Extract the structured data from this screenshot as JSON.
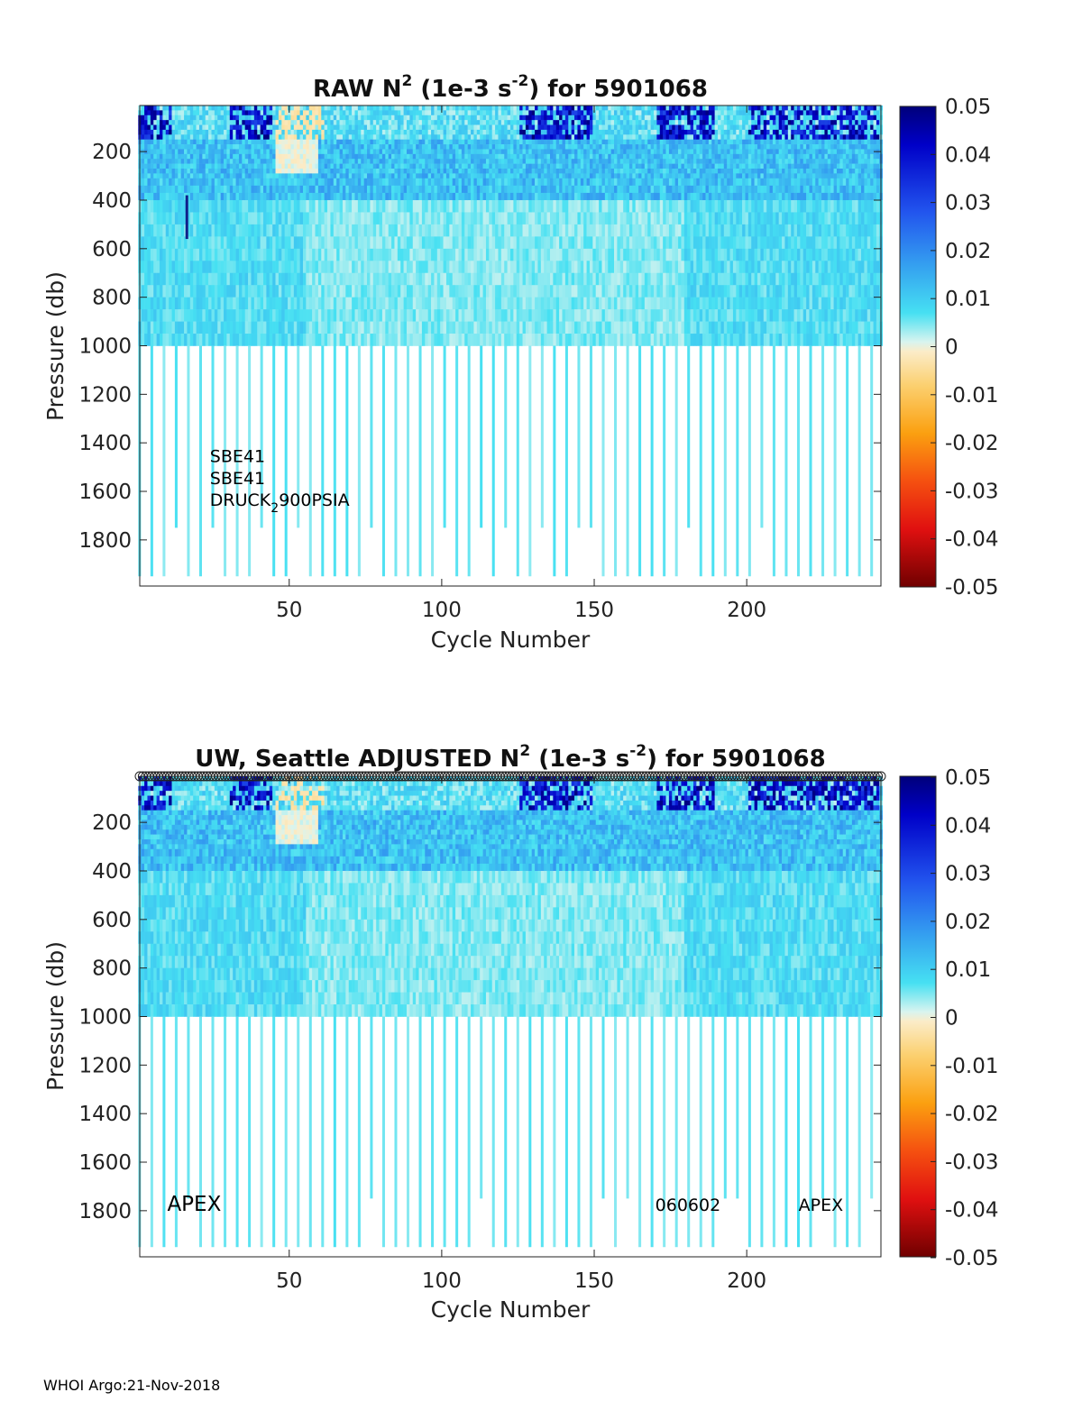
{
  "chart_data": [
    {
      "type": "heatmap",
      "title": "RAW N",
      "title_sup": "2",
      "title_units_pre": " (1e-3 s",
      "title_units_sup": "-2",
      "title_suffix": ") for 5901068",
      "xlabel": "Cycle Number",
      "ylabel": "Pressure (db)",
      "xlim": [
        1,
        244
      ],
      "ylim": [
        1990,
        10
      ],
      "xticks": [
        50,
        100,
        150,
        200
      ],
      "yticks": [
        200,
        400,
        600,
        800,
        1000,
        1200,
        1400,
        1600,
        1800
      ],
      "colorbar": {
        "range": [
          -0.05,
          0.05
        ],
        "ticks": [
          "0.05",
          "0.04",
          "0.03",
          "0.02",
          "0.01",
          "0",
          "-0.01",
          "-0.02",
          "-0.03",
          "-0.04",
          "-0.05"
        ],
        "colormap": "jet-centered-white"
      },
      "annotations": [
        {
          "text": "SBE41",
          "x": 24,
          "y": 1480
        },
        {
          "text": "SBE41",
          "x": 24,
          "y": 1570
        },
        {
          "text": "DRUCK",
          "sub": "2",
          "rest": "900PSIA",
          "x": 24,
          "y": 1660
        }
      ]
    },
    {
      "type": "heatmap",
      "title": "UW, Seattle  ADJUSTED N",
      "title_sup": "2",
      "title_units_pre": " (1e-3 s",
      "title_units_sup": "-2",
      "title_suffix": ") for 5901068",
      "xlabel": "Cycle Number",
      "ylabel": "Pressure (db)",
      "xlim": [
        1,
        244
      ],
      "ylim": [
        1990,
        10
      ],
      "xticks": [
        50,
        100,
        150,
        200
      ],
      "yticks": [
        200,
        400,
        600,
        800,
        1000,
        1200,
        1400,
        1600,
        1800
      ],
      "colorbar": {
        "range": [
          -0.05,
          0.05
        ],
        "ticks": [
          "0.05",
          "0.04",
          "0.03",
          "0.02",
          "0.01",
          "0",
          "-0.01",
          "-0.02",
          "-0.03",
          "-0.04",
          "-0.05"
        ],
        "colormap": "jet-centered-white"
      },
      "qc_markers_row": "top",
      "annotations": [
        {
          "text": "APEX",
          "x": 10,
          "y": 1800,
          "size": "big"
        },
        {
          "text": "060602",
          "x": 170,
          "y": 1800
        },
        {
          "text": "APEX",
          "x": 217,
          "y": 1800
        }
      ]
    }
  ],
  "footer": "WHOI Argo:21-Nov-2018"
}
